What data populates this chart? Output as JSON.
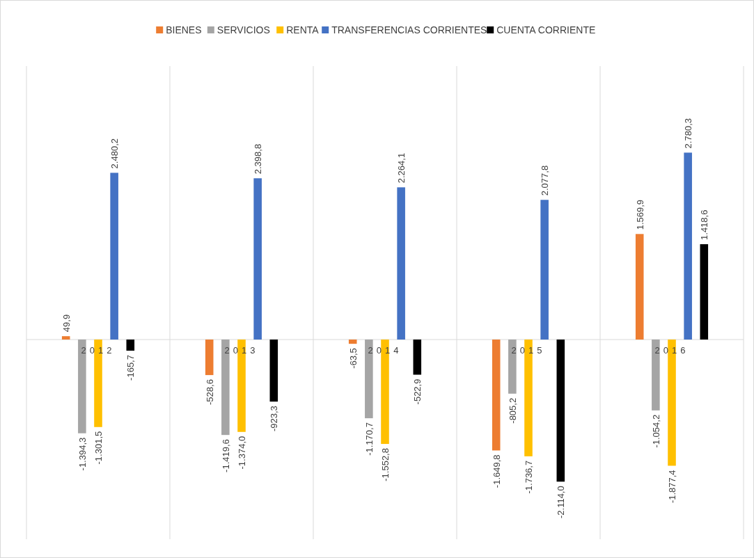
{
  "chart_data": {
    "type": "bar",
    "categories": [
      "2012",
      "2013",
      "2014",
      "2015",
      "2016"
    ],
    "legend": "top",
    "grid": "x",
    "series": [
      {
        "name": "BIENES",
        "color": "#ed7d31",
        "values": [
          49.9,
          -528.6,
          -63.5,
          -1649.8,
          1569.9
        ],
        "value_labels": [
          "49,9",
          "-528,6",
          "-63,5",
          "-1.649,8",
          "1.569,9"
        ]
      },
      {
        "name": "SERVICIOS",
        "color": "#a5a5a5",
        "values": [
          -1394.3,
          -1419.6,
          -1170.7,
          -805.2,
          -1054.2
        ],
        "value_labels": [
          "-1.394,3",
          "-1.419,6",
          "-1.170,7",
          "-805,2",
          "-1.054,2"
        ]
      },
      {
        "name": "RENTA",
        "color": "#ffc000",
        "values": [
          -1301.5,
          -1374.0,
          -1552.8,
          -1736.7,
          -1877.4
        ],
        "value_labels": [
          "-1.301,5",
          "-1.374,0",
          "-1.552,8",
          "-1.736,7",
          "-1.877,4"
        ]
      },
      {
        "name": "TRANSFERENCIAS CORRIENTES",
        "color": "#4472c4",
        "values": [
          2480.2,
          2398.8,
          2264.1,
          2077.8,
          2780.3
        ],
        "value_labels": [
          "2.480,2",
          "2.398,8",
          "2.264,1",
          "2.077,8",
          "2.780,3"
        ]
      },
      {
        "name": "CUENTA CORRIENTE",
        "color": "#000000",
        "values": [
          -165.7,
          -923.3,
          -522.9,
          -2114.0,
          1418.6
        ],
        "value_labels": [
          "-165,7",
          "-923,3",
          "-522,9",
          "-2.114,0",
          "1.418,6"
        ]
      }
    ]
  }
}
